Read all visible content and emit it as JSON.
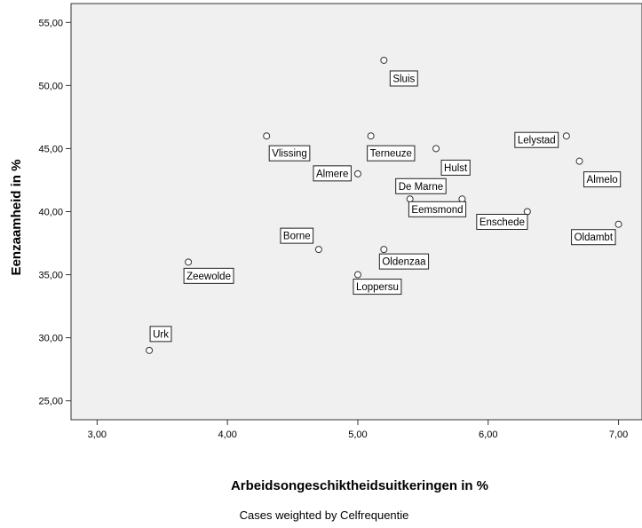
{
  "chart_data": {
    "type": "scatter",
    "xlabel": "Arbeidsongeschiktheidsuitkeringen in %",
    "ylabel": "Eenzaamheid in %",
    "footnote": "Cases weighted by Celfrequentie",
    "xlim": [
      2.8,
      7.18
    ],
    "ylim": [
      23.5,
      56.5
    ],
    "x_ticks": [
      "3,00",
      "4,00",
      "5,00",
      "6,00",
      "7,00"
    ],
    "y_ticks": [
      "25,00",
      "30,00",
      "35,00",
      "40,00",
      "45,00",
      "50,00",
      "55,00"
    ],
    "grid": false,
    "colors": {
      "plot_bg": "#f0f0f0",
      "marker_stroke": "#333333",
      "marker_fill": "#ffffff"
    },
    "points": [
      {
        "label": "Sluis",
        "x": 5.2,
        "y": 52
      },
      {
        "label": "Vlissing",
        "x": 4.3,
        "y": 46
      },
      {
        "label": "Terneuze",
        "x": 5.1,
        "y": 46
      },
      {
        "label": "Hulst",
        "x": 5.6,
        "y": 45
      },
      {
        "label": "Lelystad",
        "x": 6.6,
        "y": 46
      },
      {
        "label": "Almelo",
        "x": 6.7,
        "y": 44
      },
      {
        "label": "Almere",
        "x": 5.0,
        "y": 43
      },
      {
        "label": "De Marne",
        "x": 5.4,
        "y": 41
      },
      {
        "label": "Eemsmond",
        "x": 5.8,
        "y": 41
      },
      {
        "label": "Enschede",
        "x": 6.3,
        "y": 40
      },
      {
        "label": "Oldambt",
        "x": 7.0,
        "y": 39
      },
      {
        "label": "Borne",
        "x": 4.7,
        "y": 37
      },
      {
        "label": "Oldenzaa",
        "x": 5.2,
        "y": 37
      },
      {
        "label": "Zeewolde",
        "x": 3.7,
        "y": 36
      },
      {
        "label": "Loppersu",
        "x": 5.0,
        "y": 35
      },
      {
        "label": "Urk",
        "x": 3.4,
        "y": 29
      }
    ]
  }
}
